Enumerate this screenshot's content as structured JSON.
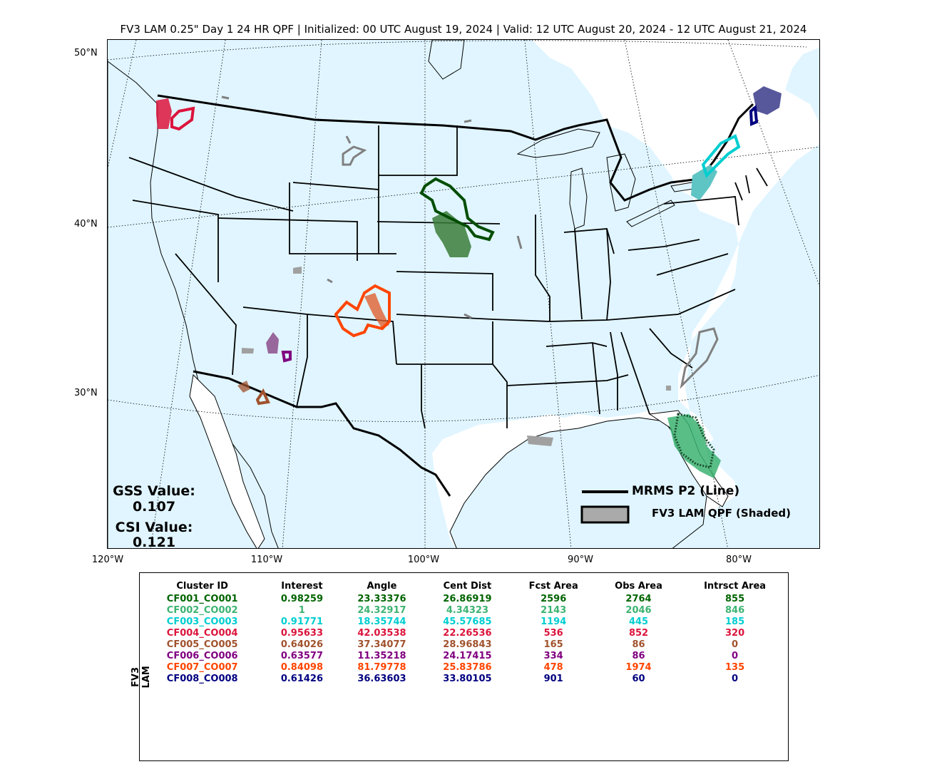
{
  "title": "FV3 LAM 0.25\" Day 1 24 HR QPF | Initialized: 00 UTC August 19, 2024 | Valid: 12 UTC August 20, 2024 - 12 UTC August 21, 2024",
  "lat_labels": [
    "50°N",
    "40°N",
    "30°N"
  ],
  "lon_labels": [
    "120°W",
    "110°W",
    "100°W",
    "90°W",
    "80°W"
  ],
  "scores": {
    "gss_label": "GSS Value:",
    "gss_value": "0.107",
    "csi_label": "CSI Value:",
    "csi_value": "0.121"
  },
  "legend": {
    "line_label": "MRMS P2 (Line)",
    "shaded_label": "FV3 LAM QPF (Shaded)"
  },
  "table": {
    "side_label": "FV3 LAM",
    "headers": [
      "Cluster ID",
      "Interest",
      "Angle",
      "Cent Dist",
      "Fcst Area",
      "Obs Area",
      "Intrsct Area"
    ],
    "rows": [
      {
        "color": "#006400",
        "cells": [
          "CF001_CO001",
          "0.98259",
          "23.33376",
          "26.86919",
          "2596",
          "2764",
          "855"
        ]
      },
      {
        "color": "#3cb371",
        "cells": [
          "CF002_CO002",
          "1",
          "24.32917",
          "4.34323",
          "2143",
          "2046",
          "846"
        ]
      },
      {
        "color": "#00ced1",
        "cells": [
          "CF003_CO003",
          "0.91771",
          "18.35744",
          "45.57685",
          "1194",
          "445",
          "185"
        ]
      },
      {
        "color": "#dc143c",
        "cells": [
          "CF004_CO004",
          "0.95633",
          "42.03538",
          "22.26536",
          "536",
          "852",
          "320"
        ]
      },
      {
        "color": "#a0522d",
        "cells": [
          "CF005_CO005",
          "0.64026",
          "37.34077",
          "28.96843",
          "165",
          "86",
          "0"
        ]
      },
      {
        "color": "#800080",
        "cells": [
          "CF006_CO006",
          "0.63577",
          "11.35218",
          "24.17415",
          "334",
          "86",
          "0"
        ]
      },
      {
        "color": "#ff4500",
        "cells": [
          "CF007_CO007",
          "0.84098",
          "81.79778",
          "25.83786",
          "478",
          "1974",
          "135"
        ]
      },
      {
        "color": "#000080",
        "cells": [
          "CF008_CO008",
          "0.61426",
          "36.63603",
          "33.80105",
          "901",
          "60",
          "0"
        ]
      }
    ]
  },
  "colors": {
    "ocean": "#e0f5ff",
    "land": "#ffffff",
    "unmatched": "#808080"
  }
}
